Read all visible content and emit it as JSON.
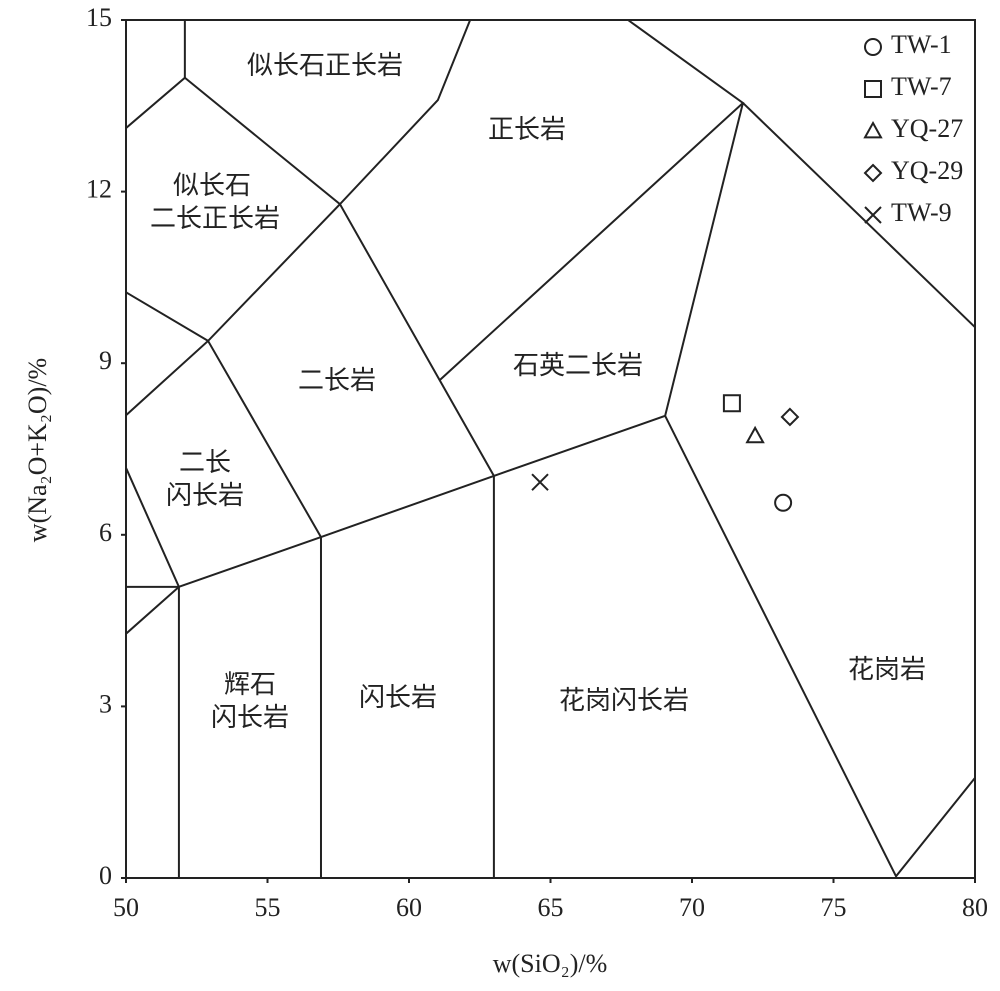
{
  "chart_data": {
    "type": "scatter",
    "x_label": "w(SiO₂)/%",
    "y_label": "w(Na₂O+K₂O)/%",
    "xlim": [
      50,
      80
    ],
    "xticks": [
      50,
      55,
      60,
      65,
      70,
      75,
      80
    ],
    "ylim": [
      0,
      15
    ],
    "yticks": [
      0,
      3,
      6,
      9,
      12,
      15
    ],
    "legend": "top-right",
    "series": [
      {
        "name": "TW-1",
        "marker": "circle",
        "color": "#222",
        "x": [
          73.22
        ],
        "values": [
          6.56
        ]
      },
      {
        "name": "TW-7",
        "marker": "square",
        "color": "#222",
        "x": [
          71.41
        ],
        "values": [
          8.3
        ]
      },
      {
        "name": "YQ-27",
        "marker": "triangle",
        "color": "#222",
        "x": [
          72.23
        ],
        "values": [
          7.73
        ]
      },
      {
        "name": "YQ-29",
        "marker": "diamond",
        "color": "#222",
        "x": [
          73.46
        ],
        "values": [
          8.06
        ]
      },
      {
        "name": "TW-9",
        "marker": "cross",
        "color": "#222",
        "x": [
          64.63
        ],
        "values": [
          6.92
        ]
      }
    ],
    "boundaries": [
      {
        "x": [
          52.08,
          52.08,
          50
        ],
        "y": [
          15,
          13.99,
          13.11
        ]
      },
      {
        "x": [
          52.08,
          57.56,
          61.02,
          62.16
        ],
        "y": [
          13.99,
          11.78,
          13.6,
          15
        ]
      },
      {
        "x": [
          50,
          52.9,
          57.56,
          63.0
        ],
        "y": [
          10.24,
          9.39,
          11.78,
          7.03
        ]
      },
      {
        "x": [
          50,
          52.9,
          56.89
        ],
        "y": [
          8.09,
          9.39,
          5.96
        ]
      },
      {
        "x": [
          50,
          51.87
        ],
        "y": [
          5.09,
          5.09
        ]
      },
      {
        "x": [
          50,
          51.87,
          50
        ],
        "y": [
          4.27,
          5.09,
          7.17
        ]
      },
      {
        "x": [
          51.87,
          56.89,
          63.0,
          69.05,
          71.8
        ],
        "y": [
          5.09,
          5.96,
          7.03,
          8.08,
          13.55
        ]
      },
      {
        "x": [
          61.1,
          71.8,
          67.74
        ],
        "y": [
          8.71,
          13.55,
          15
        ]
      },
      {
        "x": [
          71.8,
          80
        ],
        "y": [
          13.55,
          9.63
        ]
      },
      {
        "x": [
          69.05,
          77.21,
          80
        ],
        "y": [
          8.08,
          0.03,
          1.75
        ]
      },
      {
        "x": [
          51.87,
          51.87
        ],
        "y": [
          5.09,
          0
        ]
      },
      {
        "x": [
          56.89,
          56.89
        ],
        "y": [
          5.96,
          0
        ]
      },
      {
        "x": [
          63.0,
          63.0
        ],
        "y": [
          7.03,
          0
        ]
      }
    ],
    "field_labels": [
      [
        "似长石正长岩"
      ],
      [
        "正长岩"
      ],
      [
        "似长石",
        "二长正长岩"
      ],
      [
        "二长岩"
      ],
      [
        "石英二长岩"
      ],
      [
        "二长",
        "闪长岩"
      ],
      [
        "辉石",
        "闪长岩"
      ],
      [
        "闪长岩"
      ],
      [
        "花岗闪长岩"
      ],
      [
        "花岗岩"
      ]
    ]
  }
}
